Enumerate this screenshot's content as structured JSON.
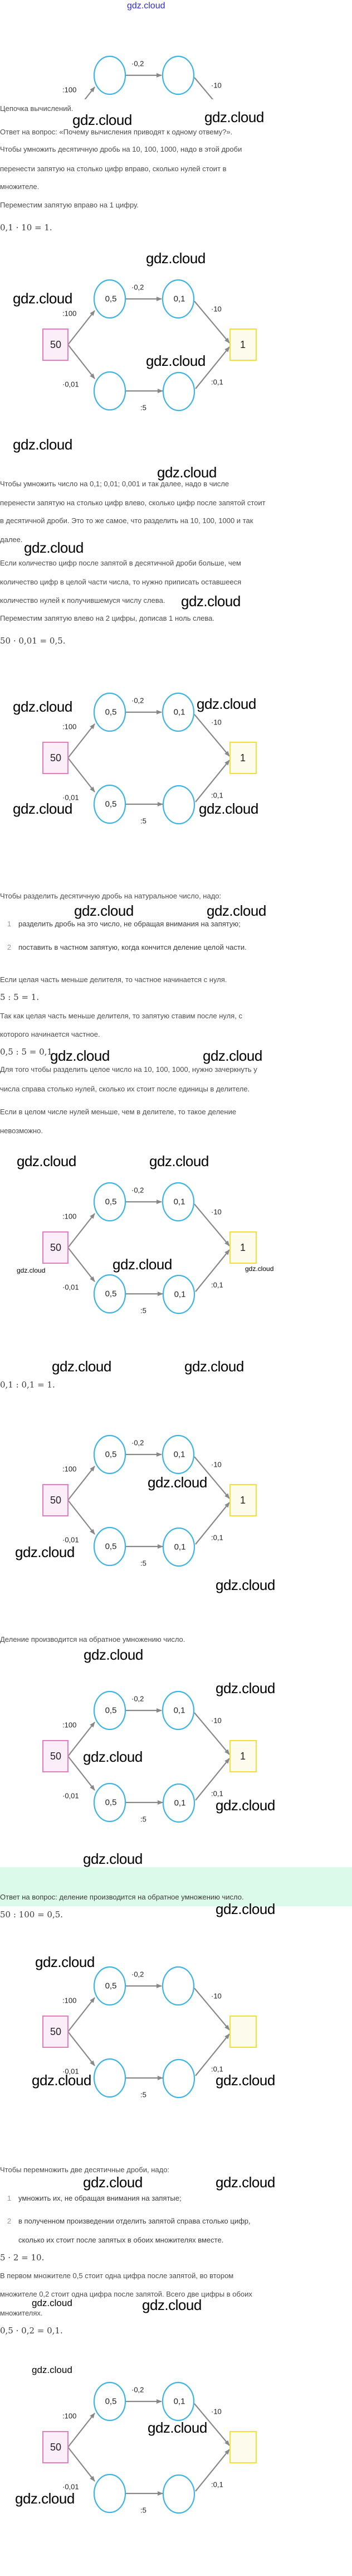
{
  "header": {
    "link": "gdz.cloud"
  },
  "watermark": "gdz.cloud",
  "colors": {
    "start_box": "#e27fbd",
    "result_box": "#f2df3a",
    "circle": "#3db4e3",
    "arrow": "#888888",
    "answer_band": "#dcfae9",
    "header_link": "#2b2bdc"
  },
  "edge_labels": {
    "div100": ":100",
    "mul02": "·0,2",
    "mul10": "·10",
    "mul001": "·0,01",
    "div5": ":5",
    "div01": ":0,1"
  },
  "diagrams": [
    {
      "start": "",
      "top1": "",
      "top2": "",
      "bottom1": "",
      "bottom2": "",
      "result": ""
    },
    {
      "start": "50",
      "top1": "0,5",
      "top2": "0,1",
      "bottom1": "",
      "bottom2": "",
      "result": "1"
    },
    {
      "start": "50",
      "top1": "0,5",
      "top2": "0,1",
      "bottom1": "0,5",
      "bottom2": "",
      "result": "1"
    },
    {
      "start": "50",
      "top1": "0,5",
      "top2": "0,1",
      "bottom1": "0,5",
      "bottom2": "0,1",
      "result": "1"
    },
    {
      "start": "50",
      "top1": "0,5",
      "top2": "0,1",
      "bottom1": "0,5",
      "bottom2": "0,1",
      "result": "1"
    },
    {
      "start": "50",
      "top1": "0,5",
      "top2": "0,1",
      "bottom1": "0,5",
      "bottom2": "0,1",
      "result": "1"
    },
    {
      "start": "50",
      "top1": "0,5",
      "top2": "",
      "bottom1": "",
      "bottom2": "",
      "result": ""
    },
    {
      "start": "50",
      "top1": "0,5",
      "top2": "0,1",
      "bottom1": "",
      "bottom2": "",
      "result": ""
    }
  ],
  "text": {
    "chain": "Цепочка вычислений.",
    "answer1": "Ответ на вопрос: «Почему вычисления приводят к одному отвему?».",
    "rule_mul10": [
      "Чтобы умножить десятичную дробь на 10, 100, 1000, надо в этой дроби",
      "перенести запятую на столько цифр вправо, сколько нулей стоит в",
      "множителе."
    ],
    "move_right": "Переместим запятую вправо на 1 цифру.",
    "eq1": "0,1 · 10 = 1.",
    "rule_mul01": [
      "Чтобы умножить число на 0,1; 0,01; 0,001 и так далее, надо в числе",
      "перенести запятую на столько цифр влево, сколько цифр после запятой стоит",
      "в десятичной дроби. Это то же самое, что разделить на 10, 100, 1000 и так",
      "далее."
    ],
    "rule_zeros": [
      "Если количество цифр после запятой в десятичной дроби больше, чем",
      "количество цифр в целой части числа, то нужно приписать оставшееся",
      "количество нулей к получившемуся числу слева."
    ],
    "move_left": "Переместим запятую влево на 2 цифры, дописав 1 ноль слева.",
    "eq2": "50 · 0,01 = 0,5.",
    "rule_div_intro": "Чтобы разделить десятичную дробь на натуральное число, надо:",
    "rule_div_steps": [
      {
        "num": "1",
        "lines": [
          "разделить дробь на это число, не обращая внимания на запятую;"
        ]
      },
      {
        "num": "2",
        "lines": [
          "поставить в частном запятую, когда кончится деление целой части."
        ]
      }
    ],
    "int_less": "Если целая часть меньше делителя, то частное начинается с нуля.",
    "eq3": "5 : 5 = 1.",
    "comma_after_zero": [
      "Так как целая часть меньше делителя, то запятую ставим после нуля, с",
      "которого начинается частное."
    ],
    "eq4": "0,5 : 5 = 0,1",
    "rule_div10": [
      "Для того чтобы разделить целое число на 10, 100, 1000, нужно зачеркнуть у",
      "числа справа столько нулей, сколько их стоит после единицы в делителе."
    ],
    "impossible": [
      "Если в целом числе нулей меньше, чем в делителе, то такое деление",
      "невозможно."
    ],
    "eq5": "0,1 : 0,1 = 1.",
    "inverse": "Деление производится на обратное умножению число.",
    "answer2": "Ответ на вопрос: деление производится на обратное умножению число.",
    "eq6": "50 : 100 = 0,5.",
    "rule_mulfrac_intro": "Чтобы перемножить две десятичные дроби, надо:",
    "rule_mulfrac_steps": [
      {
        "num": "1",
        "lines": [
          "умножить их, не обращая внимания на запятые;"
        ]
      },
      {
        "num": "2",
        "lines": [
          "в полученном произведении отделить запятой справа столько цифр,",
          "сколько их стоит после запятых в обоих множителях вместе."
        ]
      }
    ],
    "eq7": "5 · 2 = 10.",
    "digits_count": [
      "В первом множителе 0,5 стоит одна цифра после запятой, во втором",
      "множителе 0,2 стоит одна цифра после запятой. Всего две цифры в обоих",
      "множителях."
    ],
    "eq8": "0,5 · 0,2 = 0,1."
  }
}
